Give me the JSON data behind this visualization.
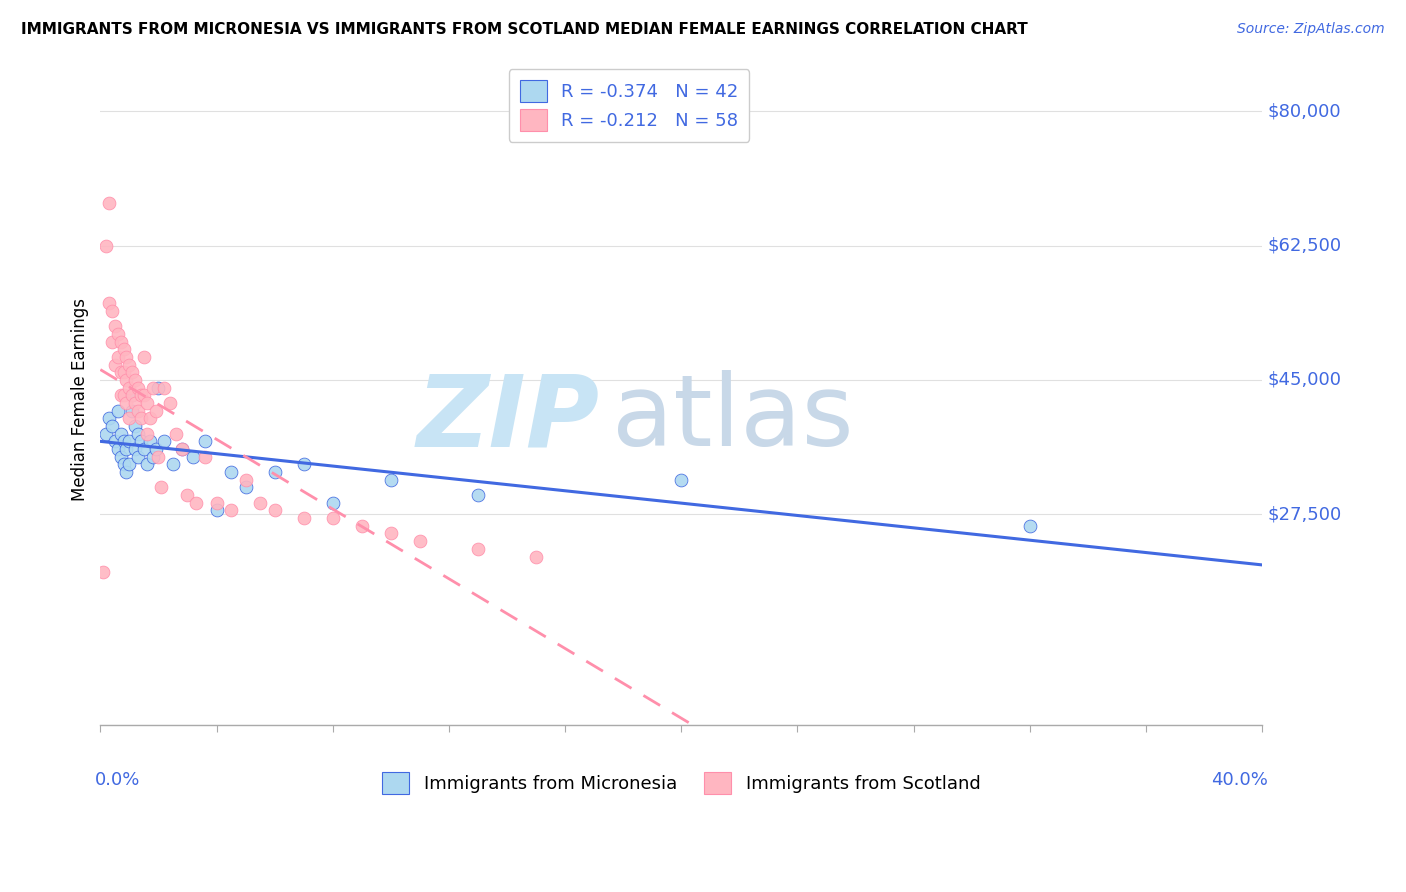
{
  "title": "IMMIGRANTS FROM MICRONESIA VS IMMIGRANTS FROM SCOTLAND MEDIAN FEMALE EARNINGS CORRELATION CHART",
  "source": "Source: ZipAtlas.com",
  "ylabel": "Median Female Earnings",
  "yticks": [
    0,
    27500,
    45000,
    62500,
    80000
  ],
  "ytick_labels": [
    "",
    "$27,500",
    "$45,000",
    "$62,500",
    "$80,000"
  ],
  "xlim": [
    0.0,
    0.4
  ],
  "ylim": [
    0,
    85000
  ],
  "micronesia_R": -0.374,
  "micronesia_N": 42,
  "scotland_R": -0.212,
  "scotland_N": 58,
  "micronesia_color": "#ADD8F0",
  "scotland_color": "#FFB6C1",
  "micronesia_line_color": "#4169E1",
  "scotland_line_color": "#FF8FAB",
  "micronesia_x": [
    0.002,
    0.003,
    0.004,
    0.005,
    0.006,
    0.006,
    0.007,
    0.007,
    0.008,
    0.008,
    0.009,
    0.009,
    0.01,
    0.01,
    0.011,
    0.011,
    0.012,
    0.012,
    0.013,
    0.013,
    0.014,
    0.015,
    0.016,
    0.017,
    0.018,
    0.019,
    0.02,
    0.022,
    0.025,
    0.028,
    0.032,
    0.036,
    0.04,
    0.045,
    0.05,
    0.06,
    0.07,
    0.08,
    0.1,
    0.13,
    0.2,
    0.32
  ],
  "micronesia_y": [
    38000,
    40000,
    39000,
    37000,
    41000,
    36000,
    38000,
    35000,
    37000,
    34000,
    36000,
    33000,
    37000,
    34000,
    43000,
    41000,
    39000,
    36000,
    38000,
    35000,
    37000,
    36000,
    34000,
    37000,
    35000,
    36000,
    44000,
    37000,
    34000,
    36000,
    35000,
    37000,
    28000,
    33000,
    31000,
    33000,
    34000,
    29000,
    32000,
    30000,
    32000,
    26000
  ],
  "scotland_x": [
    0.001,
    0.002,
    0.003,
    0.003,
    0.004,
    0.004,
    0.005,
    0.005,
    0.006,
    0.006,
    0.007,
    0.007,
    0.007,
    0.008,
    0.008,
    0.008,
    0.009,
    0.009,
    0.009,
    0.01,
    0.01,
    0.01,
    0.011,
    0.011,
    0.012,
    0.012,
    0.013,
    0.013,
    0.014,
    0.014,
    0.015,
    0.015,
    0.016,
    0.016,
    0.017,
    0.018,
    0.019,
    0.02,
    0.021,
    0.022,
    0.024,
    0.026,
    0.028,
    0.03,
    0.033,
    0.036,
    0.04,
    0.045,
    0.05,
    0.055,
    0.06,
    0.07,
    0.08,
    0.09,
    0.1,
    0.11,
    0.13,
    0.15
  ],
  "scotland_y": [
    20000,
    62500,
    68000,
    55000,
    54000,
    50000,
    52000,
    47000,
    51000,
    48000,
    50000,
    46000,
    43000,
    49000,
    46000,
    43000,
    48000,
    45000,
    42000,
    47000,
    44000,
    40000,
    46000,
    43000,
    45000,
    42000,
    44000,
    41000,
    43000,
    40000,
    48000,
    43000,
    42000,
    38000,
    40000,
    44000,
    41000,
    35000,
    31000,
    44000,
    42000,
    38000,
    36000,
    30000,
    29000,
    35000,
    29000,
    28000,
    32000,
    29000,
    28000,
    27000,
    27000,
    26000,
    25000,
    24000,
    23000,
    22000
  ],
  "background_color": "#FFFFFF",
  "grid_color": "#E0E0E0",
  "watermark_zip": "ZIP",
  "watermark_atlas": "atlas",
  "watermark_color_zip": "#C8E4F5",
  "watermark_color_atlas": "#C8D8E8"
}
